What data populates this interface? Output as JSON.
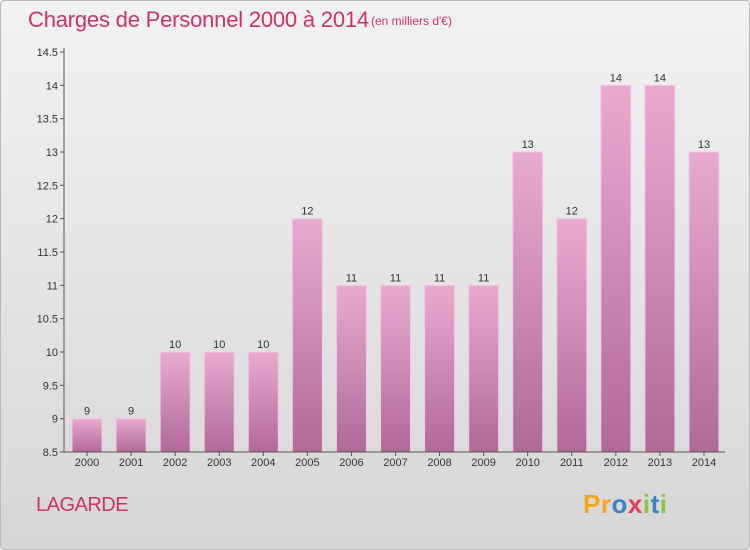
{
  "title": "Charges de Personnel 2000 à 2014",
  "subtitle": "(en milliers d'€)",
  "city": "LAGARDE",
  "logo": {
    "letters": [
      "P",
      "r",
      "o",
      "x",
      "i",
      "t",
      "i"
    ],
    "colors": [
      "#f4a51c",
      "#f4a51c",
      "#3b83c4",
      "#e23e57",
      "#8dc63f",
      "#3b83c4",
      "#8dc63f"
    ]
  },
  "colors": {
    "title": "#cc3366",
    "bar_top": "#e9aad1",
    "bar_bottom": "#b06a98",
    "axis": "#555555"
  },
  "chart_data": {
    "type": "bar",
    "categories": [
      "2000",
      "2001",
      "2002",
      "2003",
      "2004",
      "2005",
      "2006",
      "2007",
      "2008",
      "2009",
      "2010",
      "2011",
      "2012",
      "2013",
      "2014"
    ],
    "values": [
      9,
      9,
      10,
      10,
      10,
      12,
      11,
      11,
      11,
      11,
      13,
      12,
      14,
      14,
      13
    ],
    "data_labels": [
      "9",
      "9",
      "10",
      "10",
      "10",
      "12",
      "11",
      "11",
      "11",
      "11",
      "13",
      "12",
      "14",
      "14",
      "13"
    ],
    "ylim": [
      8.5,
      14.5
    ],
    "yticks": [
      8.5,
      9,
      9.5,
      10,
      10.5,
      11,
      11.5,
      12,
      12.5,
      13,
      13.5,
      14,
      14.5
    ],
    "ytick_labels": [
      "8.5",
      "9",
      "9.5",
      "10",
      "10.5",
      "11",
      "11.5",
      "12",
      "12.5",
      "13",
      "13.5",
      "14",
      "14.5"
    ],
    "xlabel": "",
    "ylabel": "",
    "grid": false,
    "legend": "none"
  }
}
